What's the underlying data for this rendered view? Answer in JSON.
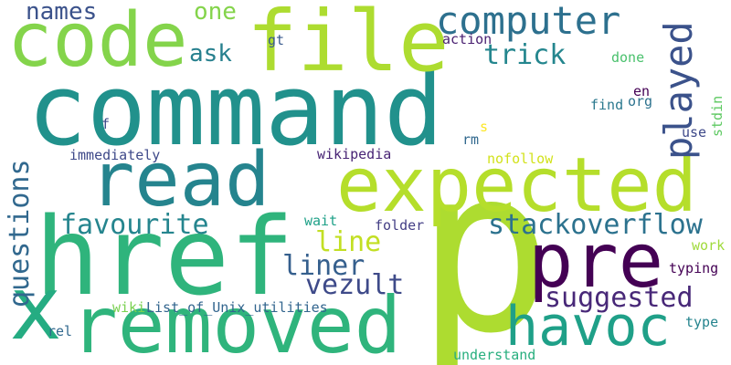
{
  "words": [
    {
      "text": "command",
      "color": "#21918c"
    },
    {
      "text": "p",
      "color": "#addc30"
    },
    {
      "text": "href",
      "color": "#2fb47c"
    },
    {
      "text": "file",
      "color": "#addc30"
    },
    {
      "text": "code",
      "color": "#84d44b"
    },
    {
      "text": "read",
      "color": "#25848e"
    },
    {
      "text": "expected",
      "color": "#b5de2b"
    },
    {
      "text": "pre",
      "color": "#440154"
    },
    {
      "text": "removed",
      "color": "#2fb47c"
    },
    {
      "text": "x",
      "color": "#25ac82"
    },
    {
      "text": "havoc",
      "color": "#1fa088"
    },
    {
      "text": "computer",
      "color": "#2d708e"
    },
    {
      "text": "played",
      "color": "#3b528b"
    },
    {
      "text": "stackoverflow",
      "color": "#2c728e"
    },
    {
      "text": "favourite",
      "color": "#25858e"
    },
    {
      "text": "suggested",
      "color": "#482878"
    },
    {
      "text": "vezult",
      "color": "#3e4a89"
    },
    {
      "text": "liner",
      "color": "#355f8d"
    },
    {
      "text": "questions",
      "color": "#31688e"
    },
    {
      "text": "trick",
      "color": "#24868e"
    },
    {
      "text": "line",
      "color": "#c2df23"
    },
    {
      "text": "names",
      "color": "#3b528b"
    },
    {
      "text": "ask",
      "color": "#27808e"
    },
    {
      "text": "one",
      "color": "#84d44b"
    },
    {
      "text": "immediately",
      "color": "#3e4989"
    },
    {
      "text": "wikipedia",
      "color": "#482475"
    },
    {
      "text": "List_of_Unix_utilities",
      "color": "#32658e"
    },
    {
      "text": "nofollow",
      "color": "#d2e21b"
    },
    {
      "text": "understand",
      "color": "#29af7f"
    },
    {
      "text": "action",
      "color": "#481f70"
    },
    {
      "text": "done",
      "color": "#4ac16d"
    },
    {
      "text": "find",
      "color": "#2a788e"
    },
    {
      "text": "org",
      "color": "#2c728e"
    },
    {
      "text": "en",
      "color": "#440154"
    },
    {
      "text": "stdin",
      "color": "#5ec962"
    },
    {
      "text": "use",
      "color": "#3e4989"
    },
    {
      "text": "typing",
      "color": "#440154"
    },
    {
      "text": "work",
      "color": "#9fda3a"
    },
    {
      "text": "type",
      "color": "#25848e"
    },
    {
      "text": "folder",
      "color": "#433e85"
    },
    {
      "text": "wait",
      "color": "#1fa188"
    },
    {
      "text": "wiki",
      "color": "#7ad151"
    },
    {
      "text": "rel",
      "color": "#31688e"
    },
    {
      "text": "rm",
      "color": "#31688e"
    },
    {
      "text": "s",
      "color": "#fde725"
    },
    {
      "text": "gt",
      "color": "#38598c"
    },
    {
      "text": "f",
      "color": "#3e4a89"
    }
  ]
}
